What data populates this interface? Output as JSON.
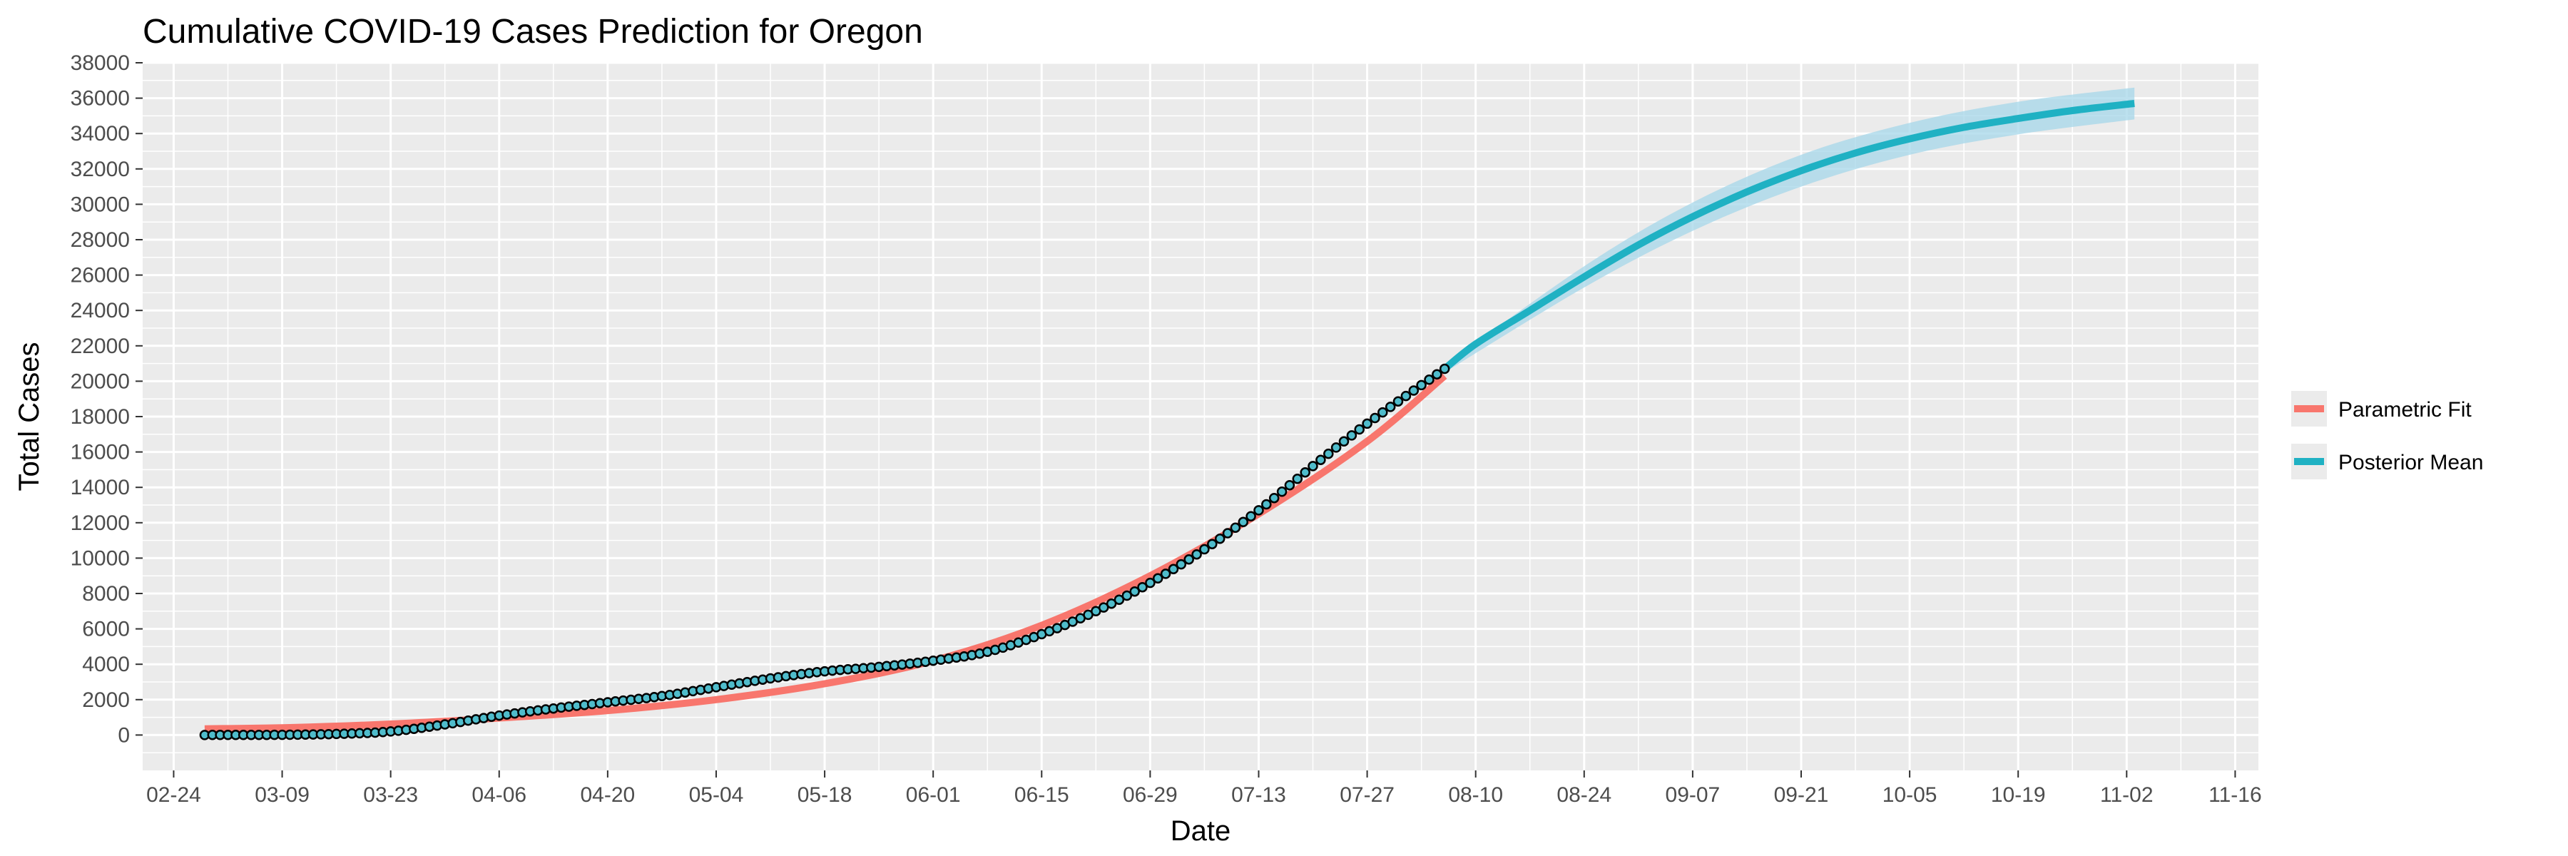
{
  "chart_data": {
    "type": "line",
    "title": "Cumulative COVID-19 Cases Prediction for Oregon",
    "xlabel": "Date",
    "ylabel": "Total Cases",
    "x_range": [
      "2020-02-20",
      "2020-11-19"
    ],
    "ylim": [
      -2000,
      38000
    ],
    "x_ticks": [
      {
        "date": "2020-02-24",
        "label": "02-24"
      },
      {
        "date": "2020-03-09",
        "label": "03-09"
      },
      {
        "date": "2020-03-23",
        "label": "03-23"
      },
      {
        "date": "2020-04-06",
        "label": "04-06"
      },
      {
        "date": "2020-04-20",
        "label": "04-20"
      },
      {
        "date": "2020-05-04",
        "label": "05-04"
      },
      {
        "date": "2020-05-18",
        "label": "05-18"
      },
      {
        "date": "2020-06-01",
        "label": "06-01"
      },
      {
        "date": "2020-06-15",
        "label": "06-15"
      },
      {
        "date": "2020-06-29",
        "label": "06-29"
      },
      {
        "date": "2020-07-13",
        "label": "07-13"
      },
      {
        "date": "2020-07-27",
        "label": "07-27"
      },
      {
        "date": "2020-08-10",
        "label": "08-10"
      },
      {
        "date": "2020-08-24",
        "label": "08-24"
      },
      {
        "date": "2020-09-07",
        "label": "09-07"
      },
      {
        "date": "2020-09-21",
        "label": "09-21"
      },
      {
        "date": "2020-10-05",
        "label": "10-05"
      },
      {
        "date": "2020-10-19",
        "label": "10-19"
      },
      {
        "date": "2020-11-02",
        "label": "11-02"
      },
      {
        "date": "2020-11-16",
        "label": "11-16"
      }
    ],
    "y_ticks": [
      0,
      2000,
      4000,
      6000,
      8000,
      10000,
      12000,
      14000,
      16000,
      18000,
      20000,
      22000,
      24000,
      26000,
      28000,
      30000,
      32000,
      34000,
      36000,
      38000
    ],
    "grid": true,
    "legend_position": "right",
    "legend": [
      {
        "label": "Parametric Fit",
        "color": "#F8766D"
      },
      {
        "label": "Posterior Mean",
        "color": "#1FB1C3"
      }
    ],
    "colors": {
      "panel_background": "#EBEBEB",
      "grid": "#FFFFFF",
      "parametric_fit": "#F8766D",
      "posterior_mean": "#1FB1C3",
      "credible_band": "#A6D7EA",
      "observed_fill": "#4FBCCB",
      "observed_stroke": "#000000"
    },
    "series": [
      {
        "name": "Parametric Fit",
        "kind": "line",
        "points": [
          {
            "date": "2020-02-28",
            "y": 350
          },
          {
            "date": "2020-03-10",
            "y": 420
          },
          {
            "date": "2020-03-23",
            "y": 620
          },
          {
            "date": "2020-04-06",
            "y": 960
          },
          {
            "date": "2020-04-20",
            "y": 1380
          },
          {
            "date": "2020-05-04",
            "y": 2000
          },
          {
            "date": "2020-05-18",
            "y": 2900
          },
          {
            "date": "2020-06-01",
            "y": 4200
          },
          {
            "date": "2020-06-15",
            "y": 6200
          },
          {
            "date": "2020-06-29",
            "y": 9000
          },
          {
            "date": "2020-07-13",
            "y": 12500
          },
          {
            "date": "2020-07-27",
            "y": 16600
          },
          {
            "date": "2020-08-06",
            "y": 20300
          }
        ]
      },
      {
        "name": "Observed",
        "kind": "points",
        "points": [
          {
            "date": "2020-02-28",
            "y": 1
          },
          {
            "date": "2020-03-09",
            "y": 14
          },
          {
            "date": "2020-03-16",
            "y": 60
          },
          {
            "date": "2020-03-23",
            "y": 200
          },
          {
            "date": "2020-03-30",
            "y": 600
          },
          {
            "date": "2020-04-06",
            "y": 1100
          },
          {
            "date": "2020-04-13",
            "y": 1500
          },
          {
            "date": "2020-04-20",
            "y": 1850
          },
          {
            "date": "2020-04-27",
            "y": 2200
          },
          {
            "date": "2020-05-04",
            "y": 2700
          },
          {
            "date": "2020-05-11",
            "y": 3200
          },
          {
            "date": "2020-05-18",
            "y": 3600
          },
          {
            "date": "2020-05-25",
            "y": 3850
          },
          {
            "date": "2020-06-01",
            "y": 4200
          },
          {
            "date": "2020-06-08",
            "y": 4700
          },
          {
            "date": "2020-06-15",
            "y": 5700
          },
          {
            "date": "2020-06-22",
            "y": 7000
          },
          {
            "date": "2020-06-29",
            "y": 8600
          },
          {
            "date": "2020-07-06",
            "y": 10500
          },
          {
            "date": "2020-07-13",
            "y": 12700
          },
          {
            "date": "2020-07-20",
            "y": 15200
          },
          {
            "date": "2020-07-27",
            "y": 17600
          },
          {
            "date": "2020-08-06",
            "y": 20700
          }
        ]
      },
      {
        "name": "Posterior Mean",
        "kind": "line",
        "points": [
          {
            "date": "2020-08-06",
            "y": 20700
          },
          {
            "date": "2020-08-10",
            "y": 22100
          },
          {
            "date": "2020-08-17",
            "y": 24000
          },
          {
            "date": "2020-08-24",
            "y": 25900
          },
          {
            "date": "2020-08-31",
            "y": 27700
          },
          {
            "date": "2020-09-07",
            "y": 29300
          },
          {
            "date": "2020-09-14",
            "y": 30700
          },
          {
            "date": "2020-09-21",
            "y": 31900
          },
          {
            "date": "2020-09-28",
            "y": 32900
          },
          {
            "date": "2020-10-05",
            "y": 33700
          },
          {
            "date": "2020-10-12",
            "y": 34350
          },
          {
            "date": "2020-10-19",
            "y": 34850
          },
          {
            "date": "2020-10-26",
            "y": 35300
          },
          {
            "date": "2020-11-03",
            "y": 35700
          }
        ]
      },
      {
        "name": "Credible Band",
        "kind": "band",
        "points": [
          {
            "date": "2020-08-06",
            "lower": 20500,
            "upper": 20900
          },
          {
            "date": "2020-08-24",
            "lower": 25300,
            "upper": 26500
          },
          {
            "date": "2020-09-07",
            "lower": 28500,
            "upper": 30100
          },
          {
            "date": "2020-09-21",
            "lower": 31000,
            "upper": 32800
          },
          {
            "date": "2020-10-05",
            "lower": 32800,
            "upper": 34600
          },
          {
            "date": "2020-10-19",
            "lower": 33950,
            "upper": 35800
          },
          {
            "date": "2020-11-03",
            "lower": 34800,
            "upper": 36600
          }
        ]
      }
    ]
  }
}
